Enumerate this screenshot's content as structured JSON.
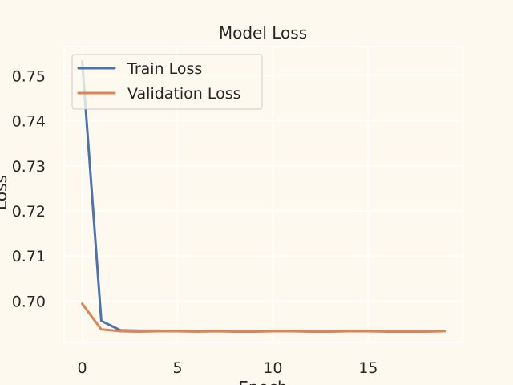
{
  "chart_data": {
    "type": "line",
    "title": "Model Loss",
    "xlabel": "Epoch",
    "ylabel": "Loss",
    "x": [
      0,
      1,
      2,
      3,
      4,
      5,
      6,
      7,
      8,
      9,
      10,
      11,
      12,
      13,
      14,
      15,
      16,
      17,
      18,
      19
    ],
    "xlim": [
      -0.95,
      19.95
    ],
    "ylim": [
      0.6908,
      0.7565
    ],
    "xticks": [
      0,
      5,
      10,
      15
    ],
    "yticks": [
      0.7,
      0.71,
      0.72,
      0.73,
      0.74,
      0.75
    ],
    "ytick_labels": [
      "0.70",
      "0.71",
      "0.72",
      "0.73",
      "0.74",
      "0.75"
    ],
    "grid": true,
    "legend_position": "upper left",
    "series": [
      {
        "name": "Train Loss",
        "color": "#4c72b0",
        "values": [
          0.7532,
          0.6956,
          0.6935,
          0.6934,
          0.6934,
          0.6933,
          0.6933,
          0.6933,
          0.6933,
          0.6933,
          0.6933,
          0.6933,
          0.6933,
          0.6933,
          0.6933,
          0.6933,
          0.6933,
          0.6933,
          0.6933,
          0.6933
        ]
      },
      {
        "name": "Validation Loss",
        "color": "#dd8452",
        "values": [
          0.6994,
          0.6937,
          0.6933,
          0.6932,
          0.6933,
          0.6933,
          0.6932,
          0.6933,
          0.6932,
          0.6932,
          0.6933,
          0.6933,
          0.6932,
          0.6932,
          0.6933,
          0.6933,
          0.6932,
          0.6932,
          0.6932,
          0.6933
        ]
      }
    ]
  },
  "colors": {
    "figure_bg": "#fdf9ee",
    "axes_bg": "#fdf9ee",
    "grid": "#ffffff",
    "text": "#262626",
    "legend_border": "#cccccc"
  }
}
